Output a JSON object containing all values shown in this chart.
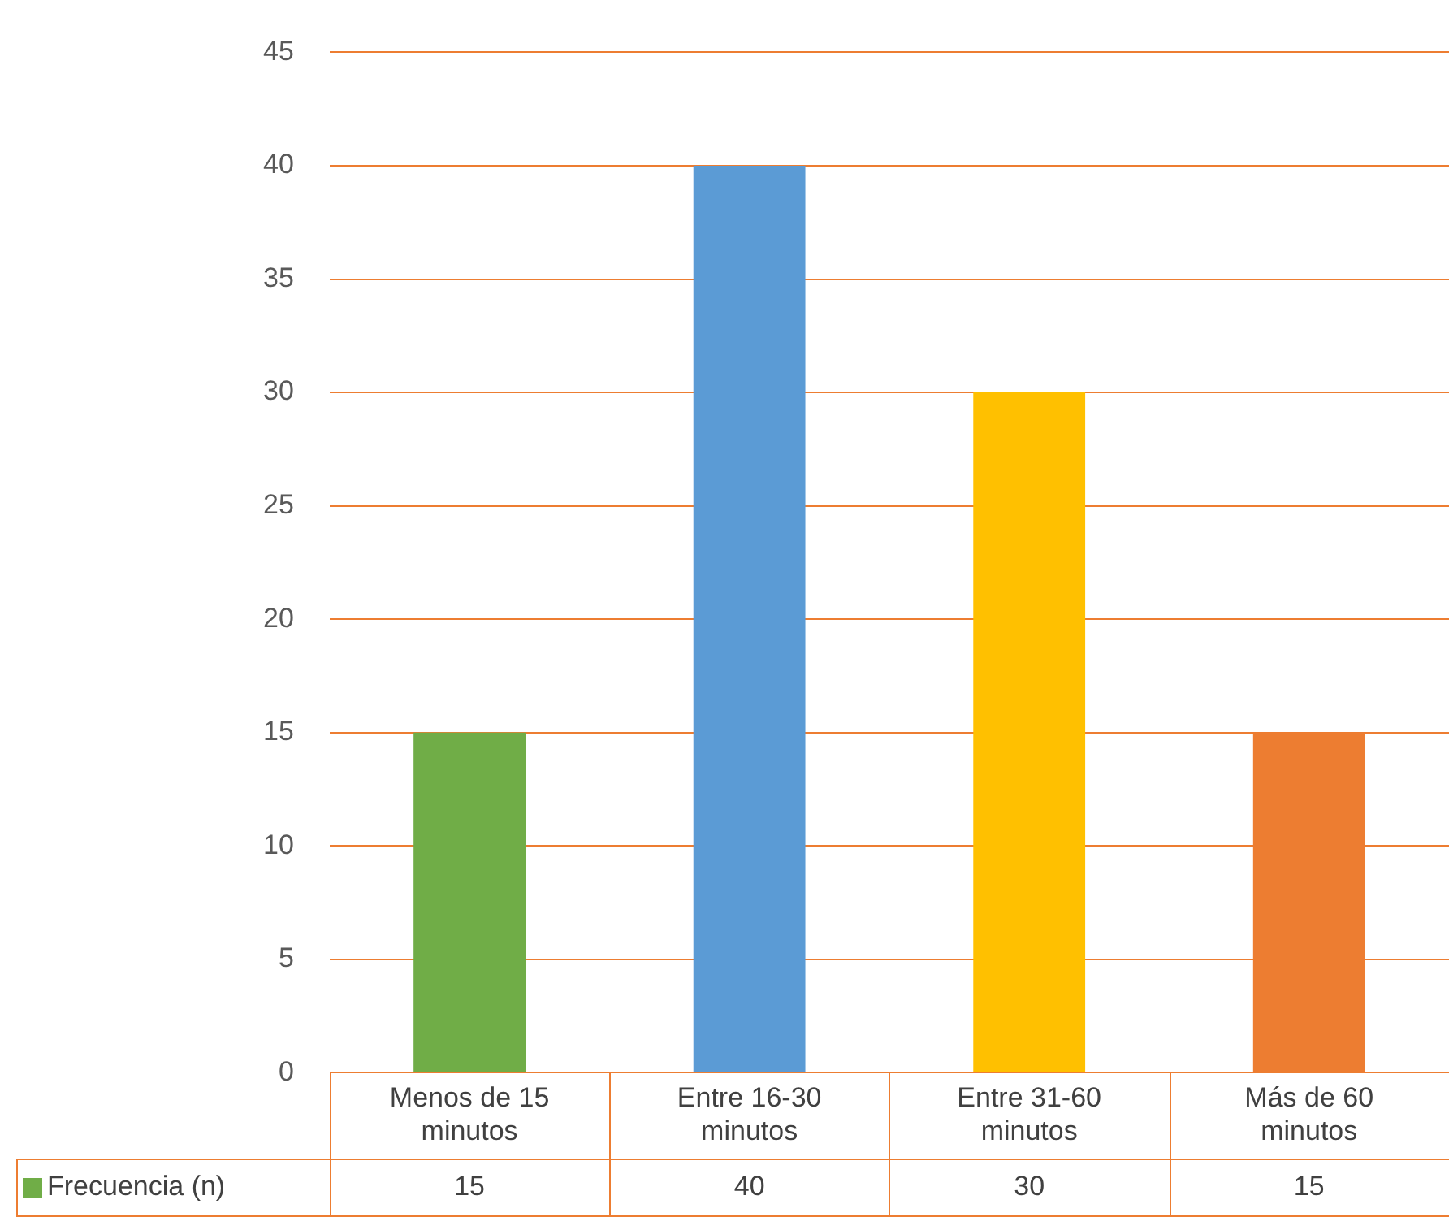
{
  "chart_data": {
    "type": "bar",
    "categories": [
      "Menos de 15 minutos",
      "Entre 16-30 minutos",
      "Entre 31-60 minutos",
      "Más de 60 minutos"
    ],
    "series": [
      {
        "name": "Frecuencia (n)",
        "colors": [
          "#70ad47",
          "#5b9bd5",
          "#ffc000",
          "#ed7d31"
        ],
        "values": [
          15,
          40,
          30,
          15
        ]
      }
    ],
    "ylim": [
      0,
      45
    ],
    "yticks": [
      0,
      5,
      10,
      15,
      20,
      25,
      30,
      35,
      40,
      45
    ],
    "grid": "y",
    "data_labels": true,
    "legend": "bottom"
  }
}
